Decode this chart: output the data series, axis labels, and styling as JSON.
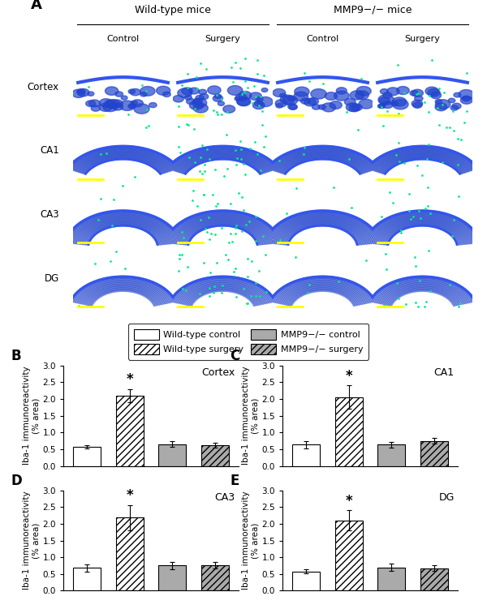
{
  "row_labels": [
    "Cortex",
    "CA1",
    "CA3",
    "DG"
  ],
  "col_labels": [
    "Control",
    "Surgery",
    "Control",
    "Surgery"
  ],
  "group_labels": [
    "Wild-type mice",
    "MMP9−/− mice"
  ],
  "bar_data": {
    "B_Cortex": {
      "values": [
        0.57,
        2.1,
        0.65,
        0.62
      ],
      "errors": [
        0.04,
        0.2,
        0.08,
        0.07
      ],
      "title": "Cortex",
      "sig_bar": 1
    },
    "C_CA1": {
      "values": [
        0.63,
        2.05,
        0.63,
        0.75
      ],
      "errors": [
        0.12,
        0.35,
        0.08,
        0.08
      ],
      "title": "CA1",
      "sig_bar": 1
    },
    "D_CA3": {
      "values": [
        0.68,
        2.18,
        0.75,
        0.76
      ],
      "errors": [
        0.1,
        0.38,
        0.12,
        0.1
      ],
      "title": "CA3",
      "sig_bar": 1
    },
    "E_DG": {
      "values": [
        0.58,
        2.1,
        0.7,
        0.67
      ],
      "errors": [
        0.05,
        0.3,
        0.1,
        0.08
      ],
      "title": "DG",
      "sig_bar": 1
    }
  },
  "bar_colors": [
    "white",
    "white",
    "#aaaaaa",
    "#aaaaaa"
  ],
  "bar_edgecolor": "black",
  "hatch_patterns": [
    "",
    "////",
    "",
    "////"
  ],
  "ylabel": "Iba-1 immunoreactivity\n(% area)",
  "ylim": [
    0,
    3.0
  ],
  "yticks": [
    0.0,
    0.5,
    1.0,
    1.5,
    2.0,
    2.5,
    3.0
  ],
  "legend_labels": [
    "Wild-type control",
    "Wild-type surgery",
    "MMP9−/− control",
    "MMP9−/− surgery"
  ],
  "legend_colors": [
    "white",
    "white",
    "#aaaaaa",
    "#aaaaaa"
  ],
  "legend_hatches": [
    "",
    "////",
    "",
    "////"
  ],
  "figure_width": 6.0,
  "figure_height": 7.51,
  "img_bg": "#030318",
  "img_blue": "#2244cc",
  "img_blue_bright": "#3355ee",
  "img_green": "#00ee88",
  "yellow": "#ffff00"
}
